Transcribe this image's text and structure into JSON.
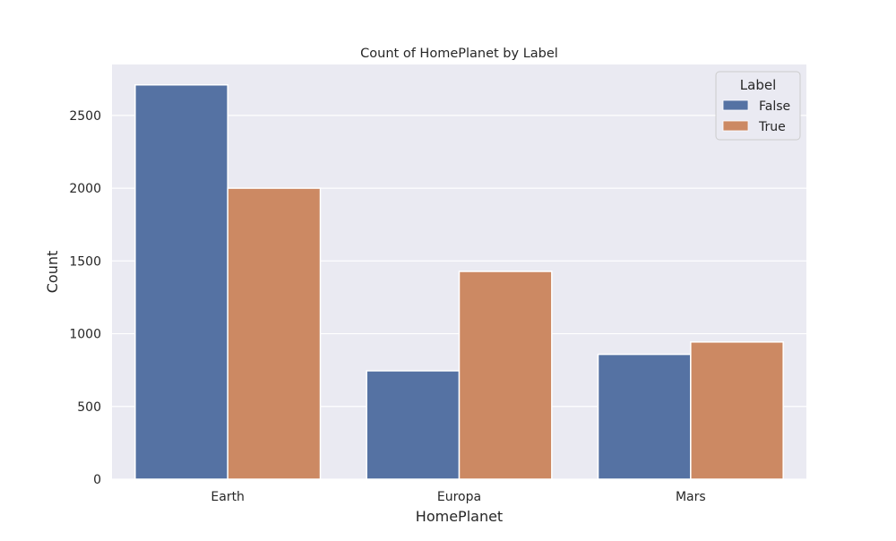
{
  "chart_data": {
    "type": "bar",
    "title": "Count of HomePlanet by Label",
    "xlabel": "HomePlanet",
    "ylabel": "Count",
    "categories": [
      "Earth",
      "Europa",
      "Mars"
    ],
    "series": [
      {
        "name": "False",
        "values": [
          2710,
          745,
          858
        ],
        "color": "#5572a3"
      },
      {
        "name": "True",
        "values": [
          2000,
          1428,
          943
        ],
        "color": "#cc8963"
      }
    ],
    "ylim": [
      0,
      2850
    ],
    "yticks": [
      0,
      500,
      1000,
      1500,
      2000,
      2500
    ],
    "legend": {
      "title": "Label",
      "placement": "top-right"
    },
    "grid": true,
    "background_color": "#eaeaf2"
  }
}
